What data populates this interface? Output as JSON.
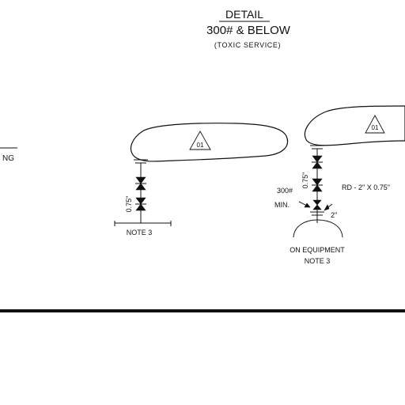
{
  "header": {
    "title": "DETAIL",
    "subtitle": "300# & BELOW",
    "service": "(TOXIC SERVICE)"
  },
  "left_edge": {
    "label": "NG"
  },
  "left_detail": {
    "revision_tag": "01",
    "dimension": "0.75\"",
    "note": "NOTE 3"
  },
  "right_detail": {
    "revision_tag": "01",
    "dimension": "0.75\"",
    "pressure": "300#",
    "min_label": "MIN.",
    "rd_label": "RD - 2\" X 0.75\"",
    "size": "2\"",
    "equipment": "ON EQUIPMENT",
    "note": "NOTE 3"
  },
  "colors": {
    "ink": "#111111",
    "paper": "#ffffff"
  }
}
